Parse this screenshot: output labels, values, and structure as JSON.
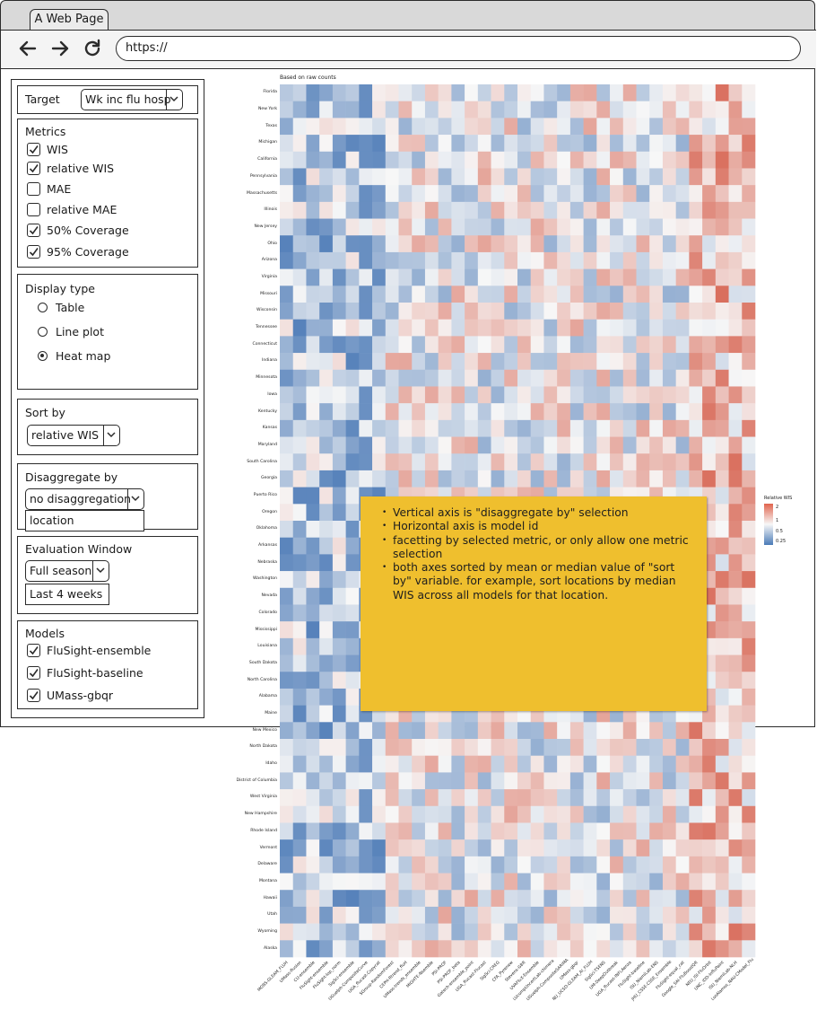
{
  "browser": {
    "tab_title": "A Web Page",
    "url": "https://"
  },
  "sidebar": {
    "target": {
      "label": "Target",
      "selected": "Wk inc flu hosp"
    },
    "metrics": {
      "label": "Metrics",
      "items": [
        {
          "label": "WIS",
          "checked": true
        },
        {
          "label": "relative WIS",
          "checked": true
        },
        {
          "label": "MAE",
          "checked": false
        },
        {
          "label": "relative MAE",
          "checked": false
        },
        {
          "label": "50% Coverage",
          "checked": true
        },
        {
          "label": "95% Coverage",
          "checked": true
        }
      ]
    },
    "display_type": {
      "label": "Display type",
      "options": [
        {
          "label": "Table",
          "selected": false
        },
        {
          "label": "Line plot",
          "selected": false
        },
        {
          "label": "Heat map",
          "selected": true
        }
      ]
    },
    "sort_by": {
      "label": "Sort by",
      "selected": "relative WIS"
    },
    "disaggregate_by": {
      "label": "Disaggregate by",
      "selected": "no disaggregation",
      "dropdown_options": [
        "location"
      ]
    },
    "evaluation_window": {
      "label": "Evaluation Window",
      "selected": "Full season",
      "dropdown_options": [
        "Last 4 weeks"
      ]
    },
    "models": {
      "label": "Models",
      "items": [
        {
          "label": "FluSight-ensemble",
          "checked": true
        },
        {
          "label": "FluSight-baseline",
          "checked": true
        },
        {
          "label": "UMass-gbqr",
          "checked": true
        }
      ]
    }
  },
  "heatmap": {
    "caption": "Based on raw counts",
    "legend": {
      "title": "Relative WIS",
      "ticks": [
        "2",
        "1",
        "0.5",
        "0.25"
      ]
    },
    "colors": {
      "high": "#d6604d",
      "mid": "#f7f7f7",
      "low": "#4575b4"
    },
    "rows": [
      "Florida",
      "New York",
      "Texas",
      "Michigan",
      "California",
      "Pennsylvania",
      "Massachusetts",
      "Illinois",
      "New Jersey",
      "Ohio",
      "Arizona",
      "Virginia",
      "Missouri",
      "Wisconsin",
      "Tennessee",
      "Connecticut",
      "Indiana",
      "Minnesota",
      "Iowa",
      "Kentucky",
      "Kansas",
      "Maryland",
      "South Carolina",
      "Georgia",
      "Puerto Rico",
      "Oregon",
      "Oklahoma",
      "Arkansas",
      "Nebraska",
      "Washington",
      "Nevada",
      "Colorado",
      "Mississippi",
      "Louisiana",
      "South Dakota",
      "North Carolina",
      "Alabama",
      "Maine",
      "New Mexico",
      "North Dakota",
      "Idaho",
      "District of Columbia",
      "West Virginia",
      "New Hampshire",
      "Rhode Island",
      "Vermont",
      "Delaware",
      "Montana",
      "Hawaii",
      "Utah",
      "Wyoming",
      "Alaska"
    ],
    "columns": [
      "MOBS-GLEAM_FLUH",
      "UMass-flusion",
      "CU-ensemble",
      "FluSight-ensemble",
      "FluSight-lop_norm",
      "SigSci-ensemble",
      "UGuelph-CompositeCurve",
      "UGA_flucast-Copycat",
      "SGroup-RandomForest",
      "CEPH-Rtrend_fluH",
      "UMass-trends_ensemble",
      "MIGHTE-Nsemble",
      "PSI-PROF",
      "PSI-PROF_beta",
      "Gatech-ensemble_point",
      "UGA_flucast-Flucast",
      "SigSci-CREG",
      "CFA_Pyrenew",
      "Stevens-GBR",
      "UVAFluX-Ensemble",
      "LUcompUncertLab-chimera",
      "UGuelph-CompositeSARIMA",
      "UMass-gbqr",
      "NU_UCSD-GLEAM_AI_FLUH",
      "SigSci-TSENS",
      "UM-DeepOutbreak",
      "UGA_flucast-INFLAenza",
      "FluSight-baseline",
      "ISU_NiemiLab-ENS",
      "JHU_CSSE-CSSE_Ensemble",
      "FluSight-equal_cat",
      "Google_SAI-FluBoostQR",
      "NEU_ISI-FluOrbit",
      "UNC_IDD-InfluPaint",
      "ISU_NiemiLab-NLH",
      "LosAlamos_NAU-CModel_Flu"
    ],
    "note": [
      "Vertical axis is \"disaggregate by\" selection",
      "Horizontal axis is model id",
      "facetting by selected metric, or only allow one metric selection",
      "both axes sorted by mean or median value of \"sort by\" variable.  for example, sort locations by median WIS across all models for that location."
    ]
  }
}
